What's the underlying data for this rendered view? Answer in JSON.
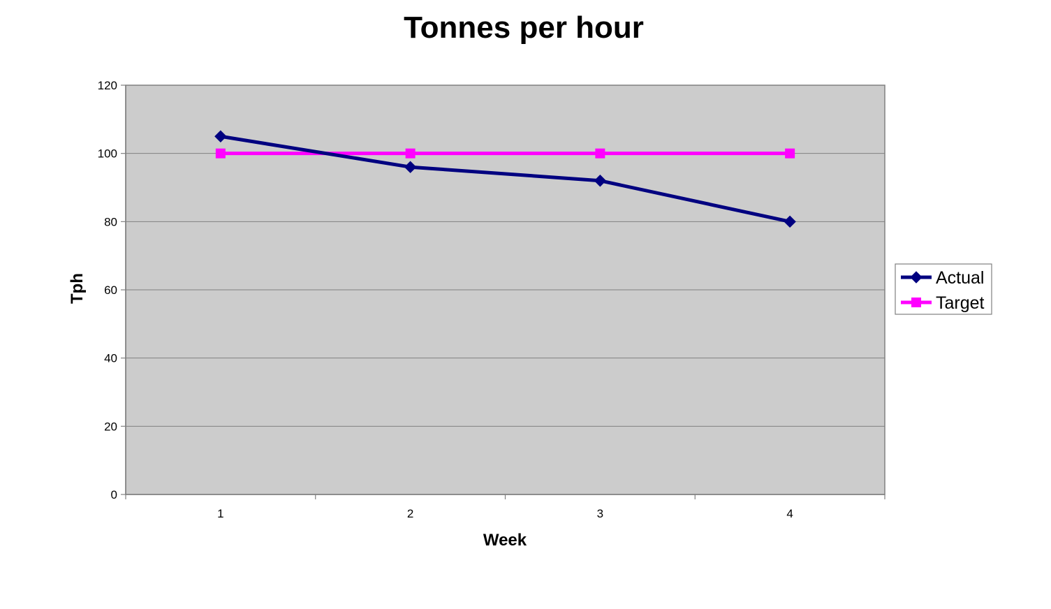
{
  "chart_data": {
    "type": "line",
    "title": "Tonnes per hour",
    "xlabel": "Week",
    "ylabel": "Tph",
    "categories": [
      "1",
      "2",
      "3",
      "4"
    ],
    "ylim": [
      0,
      120
    ],
    "yticks": [
      "0",
      "20",
      "40",
      "60",
      "80",
      "100",
      "120"
    ],
    "grid": true,
    "legend_position": "right",
    "plot_background": "#cccccc",
    "series": [
      {
        "name": "Actual",
        "values": [
          105,
          96,
          92,
          80
        ],
        "color": "#000080",
        "marker": "diamond"
      },
      {
        "name": "Target",
        "values": [
          100,
          100,
          100,
          100
        ],
        "color": "#ff00ff",
        "marker": "square"
      }
    ]
  }
}
